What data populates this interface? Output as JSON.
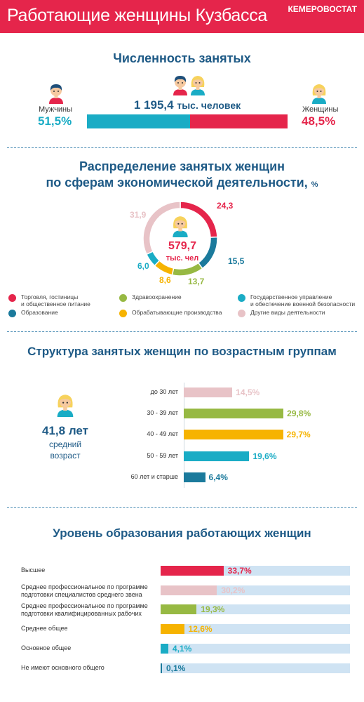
{
  "header": {
    "title": "Работающие женщины Кузбасса",
    "brand": "КЕМЕРОВОСТАТ"
  },
  "colors": {
    "red": "#e5254b",
    "teal": "#1aacc5",
    "green": "#97b943",
    "yellow": "#f6b300",
    "blue": "#1b7a9c",
    "pink": "#e8c3c7",
    "navy": "#1e5a86",
    "track": "#cfe3f3"
  },
  "employment": {
    "title": "Численность занятых",
    "total_value": "1 195,4",
    "total_unit": "тыс. человек",
    "men_label": "Мужчины",
    "men_pct": "51,5%",
    "women_label": "Женщины",
    "women_pct": "48,5%"
  },
  "sectors": {
    "title_line1": "Распределение занятых женщин",
    "title_line2": "по сферам экономической деятельности,",
    "title_unit": "%",
    "center_value": "579,7",
    "center_unit": "тыс. чел",
    "legend": [
      "Торговля, гостиницы\nи общественное питание",
      "Образование",
      "Здравоохранение",
      "Обрабатывающие производства",
      "Государственное управление\nи обеспечение военной безопасности",
      "Другие виды деятельности"
    ]
  },
  "age": {
    "title": "Структура занятых женщин по возрастным группам",
    "avg_value": "41,8 лет",
    "avg_label_1": "средний",
    "avg_label_2": "возраст"
  },
  "education": {
    "title": "Уровень образования работающих  женщин"
  },
  "chart_data": [
    {
      "type": "bar",
      "title": "Численность занятых",
      "categories": [
        "Мужчины",
        "Женщины"
      ],
      "values": [
        51.5,
        48.5
      ],
      "value_labels": [
        "51,5%",
        "48,5%"
      ],
      "colors": [
        "#1aacc5",
        "#e5254b"
      ]
    },
    {
      "type": "pie",
      "title": "Распределение занятых женщин по сферам экономической деятельности, %",
      "categories": [
        "Торговля, гостиницы и общественное питание",
        "Образование",
        "Здравоохранение",
        "Обрабатывающие производства",
        "Государственное управление и обеспечение военной безопасности",
        "Другие виды деятельности"
      ],
      "values": [
        24.3,
        15.5,
        13.7,
        8.6,
        6.0,
        31.9
      ],
      "value_labels": [
        "24,3",
        "15,5",
        "13,7",
        "8,6",
        "6,0",
        "31,9"
      ],
      "colors": [
        "#e5254b",
        "#1b7a9c",
        "#97b943",
        "#f6b300",
        "#1aacc5",
        "#e8c3c7"
      ]
    },
    {
      "type": "bar",
      "title": "Структура занятых женщин по возрастным группам",
      "categories": [
        "до 30 лет",
        "30 - 39 лет",
        "40 - 49 лет",
        "50 - 59 лет",
        "60 лет и старше"
      ],
      "values": [
        14.5,
        29.8,
        29.7,
        19.6,
        6.4
      ],
      "value_labels": [
        "14,5%",
        "29,8%",
        "29,7%",
        "19,6%",
        "6,4%"
      ],
      "colors": [
        "#e8c3c7",
        "#97b943",
        "#f6b300",
        "#1aacc5",
        "#1b7a9c"
      ]
    },
    {
      "type": "bar",
      "title": "Уровень образования работающих  женщин",
      "categories": [
        "Высшее",
        "Среднее профессиональное по программе\nподготовки специалистов среднего звена",
        "Среднее профессиональное по программе\nподготовки квалифицированных рабочих",
        "Среднее общее",
        "Основное общее",
        "Не имеют основного общего"
      ],
      "values": [
        33.7,
        30.2,
        19.3,
        12.6,
        4.1,
        0.1
      ],
      "value_labels": [
        "33,7%",
        "30,2%",
        "19,3%",
        "12,6%",
        "4,1%",
        "0,1%"
      ],
      "colors": [
        "#e5254b",
        "#e8c3c7",
        "#97b943",
        "#f6b300",
        "#1aacc5",
        "#1b7a9c"
      ]
    }
  ]
}
